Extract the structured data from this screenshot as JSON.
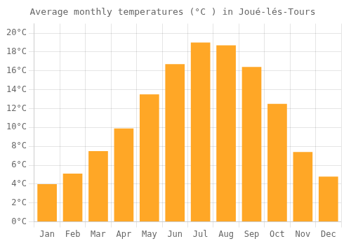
{
  "chart_data": {
    "type": "bar",
    "title": "Average monthly temperatures (°C ) in Joué-lés-Tours",
    "categories": [
      "Jan",
      "Feb",
      "Mar",
      "Apr",
      "May",
      "Jun",
      "Jul",
      "Aug",
      "Sep",
      "Oct",
      "Nov",
      "Dec"
    ],
    "values": [
      4.0,
      5.1,
      7.5,
      9.9,
      13.5,
      16.7,
      19.0,
      18.7,
      16.4,
      12.5,
      7.4,
      4.8
    ],
    "color": "#FFA726",
    "ylim": [
      0,
      21
    ],
    "yticks": [
      {
        "value": 0,
        "label": "0°C"
      },
      {
        "value": 2,
        "label": "2°C"
      },
      {
        "value": 4,
        "label": "4°C"
      },
      {
        "value": 6,
        "label": "6°C"
      },
      {
        "value": 8,
        "label": "8°C"
      },
      {
        "value": 10,
        "label": "10°C"
      },
      {
        "value": 12,
        "label": "12°C"
      },
      {
        "value": 14,
        "label": "14°C"
      },
      {
        "value": 16,
        "label": "16°C"
      },
      {
        "value": 18,
        "label": "18°C"
      },
      {
        "value": 20,
        "label": "20°C"
      }
    ],
    "grid": true
  }
}
